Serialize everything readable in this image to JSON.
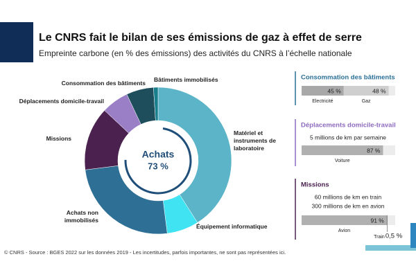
{
  "header": {
    "title": "Le CNRS fait le bilan de ses émissions de gaz à effet de serre",
    "subtitle": "Empreinte carbone (en % des émissions) des activités du CNRS à l’échelle nationale"
  },
  "chart_data": [
    {
      "type": "pie",
      "categories": [
        "Matériel et instruments de laboratoire",
        "Équipement informatique",
        "Achats non immobilisés",
        "Missions",
        "Déplacements domicile-travail",
        "Consommation des bâtiments",
        "Bâtiments immobilisés"
      ],
      "values": [
        41,
        7,
        25,
        14,
        6,
        6,
        1
      ],
      "colors": [
        "#5bb4c8",
        "#3fe3f2",
        "#2e6f96",
        "#4b2150",
        "#9b7fc6",
        "#1e4d5c",
        "#1a7f8c"
      ],
      "center_label": "Achats",
      "center_value": 73,
      "center_value_label": "73 %"
    },
    {
      "type": "bar",
      "title": "Consommation des bâtiments",
      "title_color": "#2a6f97",
      "categories": [
        "Electricité",
        "Gaz"
      ],
      "values": [
        45,
        48
      ],
      "value_labels": [
        "45 %",
        "48 %"
      ],
      "colors": [
        "#a8a8a8",
        "#cfcfcf"
      ],
      "xlim": [
        0,
        100
      ]
    },
    {
      "type": "bar",
      "title": "Déplacements domicile-travail",
      "title_color": "#8e6bbf",
      "notes": [
        "5 millions de km par semaine"
      ],
      "categories": [
        "Voiture"
      ],
      "values": [
        87
      ],
      "value_labels": [
        "87 %"
      ],
      "colors": [
        "#b0b0b0"
      ],
      "xlim": [
        0,
        100
      ]
    },
    {
      "type": "bar",
      "title": "Missions",
      "title_color": "#4b2150",
      "notes": [
        "60 millions de km en train",
        "300 millions de km en avion"
      ],
      "categories": [
        "Avion",
        "Train"
      ],
      "values": [
        91,
        0.5
      ],
      "value_labels": [
        "91 %",
        "0,5 %"
      ],
      "colors": [
        "#b0b0b0",
        "#555555"
      ],
      "xlim": [
        0,
        100
      ]
    }
  ],
  "footer": "© CNRS - Source : BGES 2022 sur les données 2019 - Les incertitudes, parfois importantes, ne sont pas représentées ici."
}
